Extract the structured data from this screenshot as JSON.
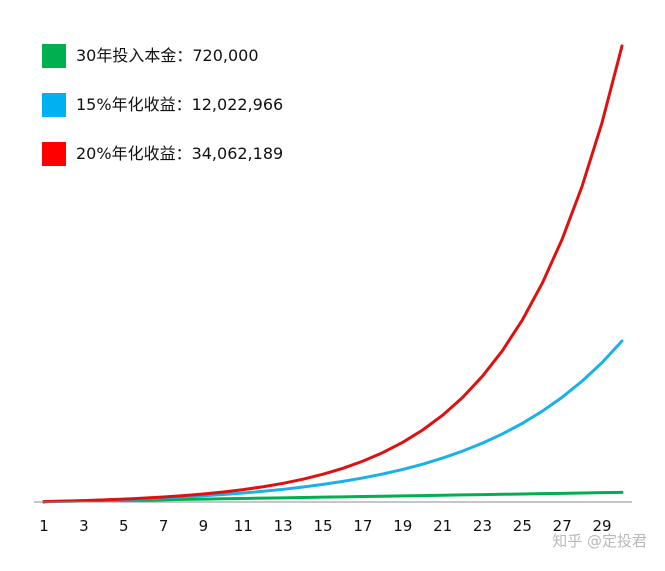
{
  "watermark": "知乎 @定投君",
  "legend": [
    {
      "label": "30年投入本金：720,000",
      "color": "#00b050"
    },
    {
      "label": "15%年化收益：12,022,966",
      "color": "#00b0f0"
    },
    {
      "label": "20%年化收益：34,062,189",
      "color": "#ff0000"
    }
  ],
  "chart_data": {
    "type": "line",
    "title": "",
    "xlabel": "",
    "ylabel": "",
    "x": [
      1,
      2,
      3,
      4,
      5,
      6,
      7,
      8,
      9,
      10,
      11,
      12,
      13,
      14,
      15,
      16,
      17,
      18,
      19,
      20,
      21,
      22,
      23,
      24,
      25,
      26,
      27,
      28,
      29,
      30
    ],
    "x_tick_labels": [
      "1",
      "3",
      "5",
      "7",
      "9",
      "11",
      "13",
      "15",
      "17",
      "19",
      "21",
      "23",
      "25",
      "27",
      "29"
    ],
    "ylim": [
      0,
      36000000
    ],
    "grid": false,
    "legend_position": "top-left",
    "series": [
      {
        "name": "30年投入本金：720,000",
        "color": "#00b050",
        "values": [
          24000,
          48000,
          72000,
          96000,
          120000,
          144000,
          168000,
          192000,
          216000,
          240000,
          264000,
          288000,
          312000,
          336000,
          360000,
          384000,
          408000,
          432000,
          456000,
          480000,
          504000,
          528000,
          552000,
          576000,
          600000,
          624000,
          648000,
          672000,
          696000,
          720000
        ]
      },
      {
        "name": "15%年化收益：12,022,966",
        "color": "#1ab0e8",
        "values": [
          27600,
          59340,
          95841,
          137817,
          186090,
          241604,
          305445,
          378862,
          463291,
          560385,
          672043,
          800449,
          948117,
          1117934,
          1313225,
          1537809,
          1796081,
          2093093,
          2434657,
          2827455,
          3279173,
          3798649,
          4396046,
          5083053,
          5873101,
          6781666,
          7826516,
          9028093,
          10409907,
          12022966
        ]
      },
      {
        "name": "20%年化收益：34,062,189",
        "color": "#dd1111",
        "values": [
          28800,
          63360,
          104832,
          154598,
          214318,
          285982,
          371978,
          475174,
          599009,
          747611,
          925933,
          1139919,
          1396703,
          1704844,
          2074613,
          2518336,
          3050803,
          3689764,
          4456517,
          5376620,
          6480744,
          7805693,
          9395632,
          11303558,
          13592870,
          16340244,
          19637093,
          23593311,
          28340773,
          34062189
        ]
      }
    ]
  }
}
